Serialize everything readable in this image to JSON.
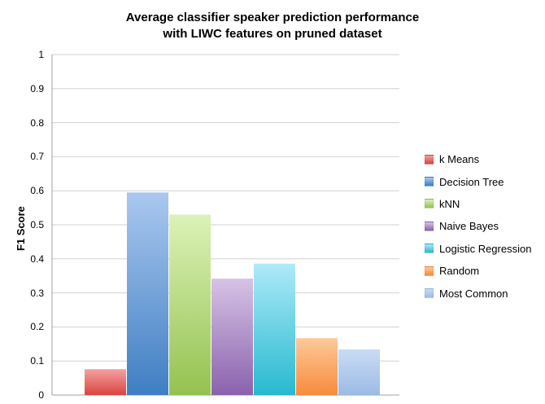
{
  "chart_data": {
    "type": "bar",
    "title_lines": [
      "Average classifier speaker prediction performance",
      "with LIWC features on pruned dataset"
    ],
    "ylabel": "F1 Score",
    "xlabel": "",
    "ylim": [
      0,
      1
    ],
    "yticks": [
      "0",
      "0.1",
      "0.2",
      "0.3",
      "0.4",
      "0.5",
      "0.6",
      "0.7",
      "0.8",
      "0.9",
      "1"
    ],
    "grid": true,
    "legend_position": "right",
    "series": [
      {
        "name": "k Means",
        "value": 0.076,
        "color_top": "#f4a1a1",
        "color_bottom": "#d9443f"
      },
      {
        "name": "Decision Tree",
        "value": 0.595,
        "color_top": "#aac8ef",
        "color_bottom": "#3f7ec3"
      },
      {
        "name": "kNN",
        "value": 0.53,
        "color_top": "#dcf2b8",
        "color_bottom": "#94c250"
      },
      {
        "name": "Naive Bayes",
        "value": 0.342,
        "color_top": "#d6c3e6",
        "color_bottom": "#8a62ad"
      },
      {
        "name": "Logistic Regression",
        "value": 0.386,
        "color_top": "#aeeaf9",
        "color_bottom": "#27b9cf"
      },
      {
        "name": "Random",
        "value": 0.167,
        "color_top": "#fdc99a",
        "color_bottom": "#f88b3c"
      },
      {
        "name": "Most Common",
        "value": 0.134,
        "color_top": "#c9dcf4",
        "color_bottom": "#9bbbe5"
      }
    ]
  }
}
